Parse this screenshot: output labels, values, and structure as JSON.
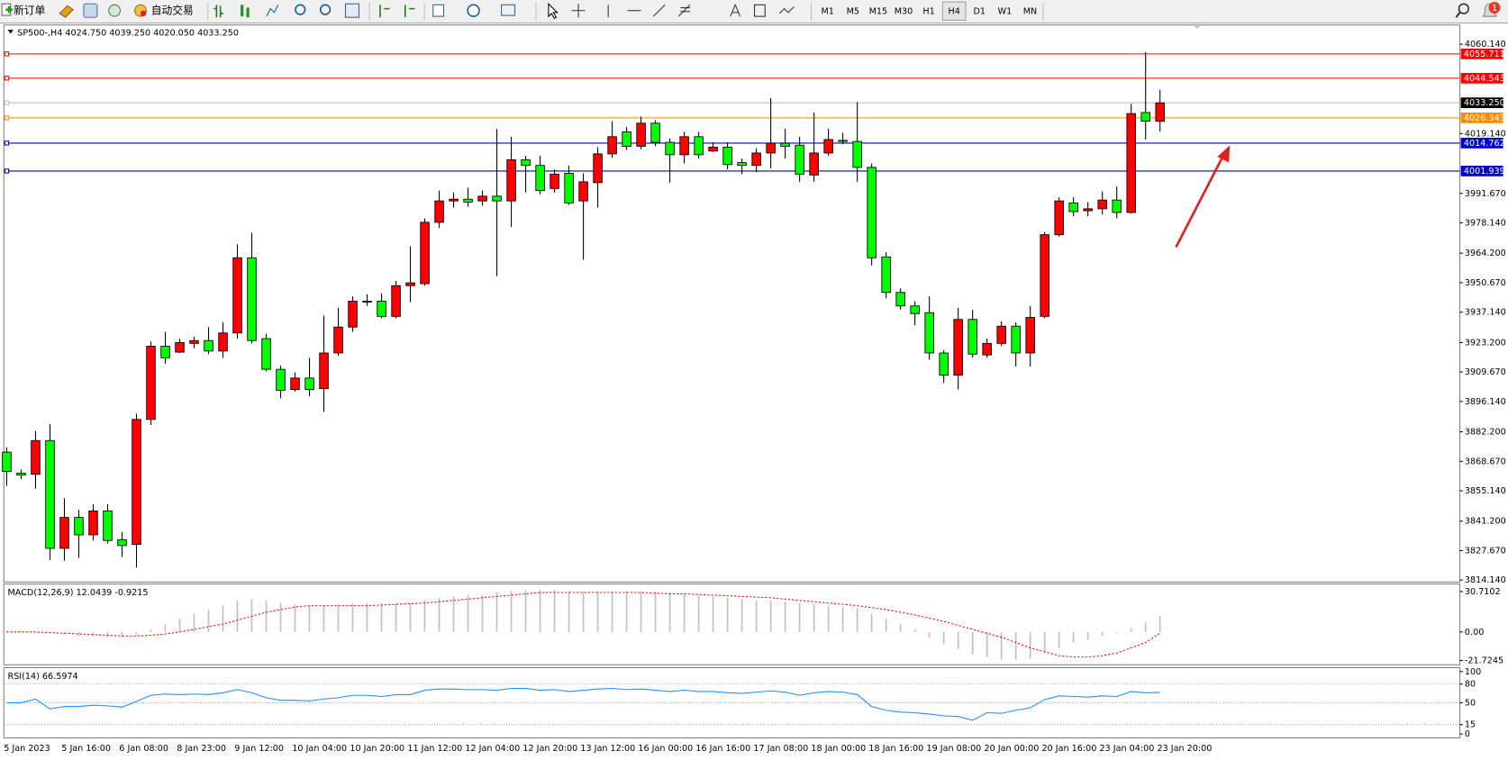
{
  "toolbar": {
    "new_order": "新订单",
    "auto_trading": "自动交易",
    "timeframes": [
      "M1",
      "M5",
      "M15",
      "M30",
      "H1",
      "H4",
      "D1",
      "W1",
      "MN"
    ],
    "active_timeframe": "H4",
    "notifications": 1
  },
  "chart_data": [
    {
      "type": "candlestick",
      "title": "SP500-,H4  4024.750 4039.250 4020.050 4033.250",
      "categories": [
        "5 Jan 2023",
        null,
        null,
        null,
        "5 Jan 16:00",
        null,
        null,
        null,
        "6 Jan 08:00",
        null,
        null,
        null,
        "8 Jan 23:00",
        null,
        null,
        null,
        "9 Jan 12:00",
        null,
        null,
        null,
        "10 Jan 04:00",
        null,
        null,
        null,
        "10 Jan 20:00",
        null,
        null,
        null,
        "11 Jan 12:00",
        null,
        null,
        null,
        "12 Jan 04:00",
        null,
        null,
        null,
        "12 Jan 20:00",
        null,
        null,
        null,
        "13 Jan 12:00",
        null,
        null,
        null,
        "16 Jan 00:00",
        null,
        null,
        null,
        "16 Jan 16:00",
        null,
        null,
        null,
        "17 Jan 08:00",
        null,
        null,
        null,
        "18 Jan 00:00",
        null,
        null,
        null,
        "18 Jan 16:00",
        null,
        null,
        null,
        "19 Jan 08:00",
        null,
        null,
        null,
        "20 Jan 00:00",
        null,
        null,
        null,
        "20 Jan 16:00",
        null,
        null,
        null,
        "23 Jan 04:00",
        null,
        null,
        null,
        "23 Jan 20:00"
      ],
      "candles": [
        [
          3872.9,
          3875.1,
          3857.4,
          3864.0
        ],
        [
          3863.2,
          3864.9,
          3860.5,
          3862.3
        ],
        [
          3862.7,
          3882.6,
          3856.1,
          3878.2
        ],
        [
          3878.2,
          3885.7,
          3823.4,
          3828.7
        ],
        [
          3828.7,
          3851.7,
          3823.0,
          3842.9
        ],
        [
          3842.9,
          3846.4,
          3824.3,
          3834.9
        ],
        [
          3834.9,
          3849.0,
          3832.3,
          3845.9
        ],
        [
          3845.9,
          3849.0,
          3830.9,
          3832.3
        ],
        [
          3832.7,
          3836.2,
          3824.7,
          3830.0
        ],
        [
          3830.5,
          3890.6,
          3819.9,
          3887.9
        ],
        [
          3887.9,
          3923.7,
          3885.3,
          3921.5
        ],
        [
          3921.5,
          3928.1,
          3913.5,
          3916.2
        ],
        [
          3918.8,
          3925.0,
          3918.4,
          3923.2
        ],
        [
          3922.8,
          3925.9,
          3920.6,
          3924.1
        ],
        [
          3924.1,
          3930.3,
          3917.9,
          3919.3
        ],
        [
          3919.3,
          3932.5,
          3916.2,
          3927.6
        ],
        [
          3927.6,
          3968.3,
          3925.0,
          3962.1
        ],
        [
          3962.1,
          3973.6,
          3922.8,
          3924.1
        ],
        [
          3925.0,
          3927.2,
          3910.0,
          3910.9
        ],
        [
          3910.9,
          3912.6,
          3897.6,
          3901.2
        ],
        [
          3901.6,
          3909.5,
          3900.7,
          3906.9
        ],
        [
          3906.9,
          3916.2,
          3898.5,
          3901.6
        ],
        [
          3902.0,
          3935.6,
          3891.4,
          3918.4
        ],
        [
          3918.4,
          3939.1,
          3917.1,
          3930.3
        ],
        [
          3930.3,
          3944.4,
          3928.1,
          3942.2
        ],
        [
          3942.2,
          3945.3,
          3940.0,
          3941.8
        ],
        [
          3942.2,
          3945.8,
          3934.3,
          3935.2
        ],
        [
          3935.2,
          3951.5,
          3934.3,
          3949.3
        ],
        [
          3949.3,
          3967.4,
          3941.8,
          3950.6
        ],
        [
          3950.2,
          3980.2,
          3949.3,
          3978.4
        ],
        [
          3978.4,
          3993.0,
          3975.8,
          3988.2
        ],
        [
          3988.2,
          3992.1,
          3985.1,
          3989.0
        ],
        [
          3989.0,
          3994.3,
          3985.5,
          3987.7
        ],
        [
          3988.2,
          3993.0,
          3986.0,
          3990.4
        ],
        [
          3990.4,
          4021.3,
          3953.7,
          3988.2
        ],
        [
          3988.2,
          4017.7,
          3976.2,
          4007.1
        ],
        [
          4007.1,
          4008.9,
          3992.1,
          4004.5
        ],
        [
          4004.5,
          4008.9,
          3991.2,
          3993.0
        ],
        [
          3993.9,
          4002.7,
          3992.1,
          4000.5
        ],
        [
          4000.9,
          4004.5,
          3986.4,
          3987.3
        ],
        [
          3988.2,
          4000.9,
          3961.2,
          3997.0
        ],
        [
          3996.6,
          4012.9,
          3985.1,
          4009.8
        ],
        [
          4009.8,
          4024.8,
          4008.0,
          4017.7
        ],
        [
          4019.9,
          4022.2,
          4011.6,
          4013.3
        ],
        [
          4013.3,
          4027.0,
          4012.0,
          4023.9
        ],
        [
          4023.9,
          4025.3,
          4013.3,
          4015.1
        ],
        [
          4015.1,
          4016.9,
          3996.6,
          4009.4
        ],
        [
          4009.4,
          4019.9,
          4005.4,
          4017.7
        ],
        [
          4017.7,
          4019.9,
          4007.6,
          4009.4
        ],
        [
          4011.1,
          4015.1,
          4010.7,
          4012.9
        ],
        [
          4012.9,
          4015.1,
          4002.7,
          4004.9
        ],
        [
          4005.8,
          4007.6,
          4000.5,
          4004.5
        ],
        [
          4004.5,
          4012.4,
          4001.4,
          4010.2
        ],
        [
          4010.2,
          4035.4,
          4003.2,
          4014.7
        ],
        [
          4014.7,
          4021.3,
          4007.6,
          4013.3
        ],
        [
          4013.8,
          4017.7,
          3997.0,
          4000.5
        ],
        [
          4000.1,
          4028.8,
          3997.0,
          4010.2
        ],
        [
          4010.2,
          4021.3,
          4008.9,
          4016.4
        ],
        [
          4016.0,
          4019.5,
          4014.2,
          4015.5
        ],
        [
          4015.5,
          4033.6,
          3997.0,
          4003.6
        ],
        [
          4003.6,
          4005.4,
          3958.6,
          3962.1
        ],
        [
          3962.5,
          3964.7,
          3943.5,
          3946.2
        ],
        [
          3946.2,
          3948.0,
          3938.3,
          3940.0
        ],
        [
          3940.0,
          3942.2,
          3931.2,
          3936.5
        ],
        [
          3936.9,
          3944.4,
          3915.3,
          3918.4
        ],
        [
          3918.4,
          3919.7,
          3904.7,
          3908.2
        ],
        [
          3908.2,
          3939.1,
          3901.6,
          3933.8
        ],
        [
          3933.8,
          3938.3,
          3916.2,
          3917.9
        ],
        [
          3917.5,
          3925.0,
          3916.2,
          3922.8
        ],
        [
          3922.8,
          3932.9,
          3921.5,
          3930.7
        ],
        [
          3930.7,
          3932.5,
          3912.2,
          3918.4
        ],
        [
          3918.4,
          3940.0,
          3912.2,
          3934.7
        ],
        [
          3935.2,
          3974.0,
          3934.3,
          3972.7
        ],
        [
          3972.7,
          3989.9,
          3971.8,
          3988.2
        ],
        [
          3987.3,
          3989.9,
          3981.1,
          3983.3
        ],
        [
          3983.7,
          3987.7,
          3981.1,
          3984.6
        ],
        [
          3984.6,
          3992.6,
          3982.0,
          3988.6
        ],
        [
          3988.6,
          3994.8,
          3980.2,
          3982.9
        ],
        [
          3982.9,
          4032.8,
          3982.4,
          4028.3
        ],
        [
          4028.8,
          4056.6,
          4016.4,
          4024.8
        ],
        [
          4024.75,
          4039.25,
          4020.05,
          4033.25
        ]
      ],
      "up_color": "#ff0000",
      "down_color": "#00ff00",
      "ylim": [
        3813.25,
        4068.97
      ],
      "yticks": [
        {
          "value": 4060.14,
          "label": "4060.140"
        },
        {
          "value": 4019.14,
          "label": "4019.140"
        },
        {
          "value": 3991.67,
          "label": "3991.670"
        },
        {
          "value": 3978.14,
          "label": "3978.140"
        },
        {
          "value": 3964.2,
          "label": "3964.200"
        },
        {
          "value": 3950.67,
          "label": "3950.670"
        },
        {
          "value": 3937.14,
          "label": "3937.140"
        },
        {
          "value": 3923.2,
          "label": "3923.200"
        },
        {
          "value": 3909.67,
          "label": "3909.670"
        },
        {
          "value": 3896.14,
          "label": "3896.140"
        },
        {
          "value": 3882.2,
          "label": "3882.200"
        },
        {
          "value": 3868.67,
          "label": "3868.670"
        },
        {
          "value": 3855.14,
          "label": "3855.140"
        },
        {
          "value": 3841.2,
          "label": "3841.200"
        },
        {
          "value": 3827.67,
          "label": "3827.670"
        },
        {
          "value": 3814.14,
          "label": "3814.140"
        }
      ],
      "hlines": [
        {
          "value": 4055.711,
          "color": "#ff0000"
        },
        {
          "value": 4044.543,
          "color": "#ff0000"
        },
        {
          "value": 4026.343,
          "color": "#ff8c00"
        },
        {
          "value": 4014.762,
          "color": "#0000cd"
        },
        {
          "value": 4001.939,
          "color": "#0000cd"
        }
      ],
      "last_price": {
        "value": 4033.25,
        "label": "4033.250"
      }
    },
    {
      "type": "macd",
      "title": "MACD(12,26,9) 12.0439 -0.9215",
      "histogram": [
        1,
        1,
        0,
        -1,
        -2,
        -3,
        -3,
        -4,
        -4,
        -2,
        2,
        6,
        10,
        14,
        17,
        20,
        24,
        25,
        24,
        22,
        21,
        20,
        20,
        21,
        22,
        22,
        22,
        22,
        22,
        24,
        26,
        27,
        28,
        28,
        30,
        31,
        32,
        32,
        32,
        31,
        31,
        31,
        31,
        31,
        31,
        31,
        30,
        29,
        28,
        27,
        26,
        25,
        24,
        24,
        23,
        22,
        21,
        20,
        19,
        18,
        14,
        10,
        6,
        2,
        -4,
        -9,
        -13,
        -17,
        -19,
        -21,
        -21,
        -20,
        -16,
        -12,
        -8,
        -6,
        -3,
        -1,
        3,
        7,
        12.0439
      ],
      "signal": [
        0,
        0,
        0,
        -0.5,
        -1,
        -1.5,
        -2,
        -2.5,
        -3,
        -3,
        -2.5,
        -1.5,
        0,
        2,
        4,
        6,
        9,
        12,
        15,
        17,
        19,
        20,
        20,
        20,
        20,
        20,
        20.5,
        21,
        21.5,
        22,
        23,
        24,
        25,
        26,
        27,
        28,
        29,
        30,
        30,
        30,
        30,
        30,
        30,
        30,
        30,
        29.5,
        29,
        29,
        28.5,
        28,
        27.5,
        27,
        26.5,
        26,
        25,
        24,
        23,
        22,
        21,
        20,
        18.5,
        17,
        15,
        13,
        10.5,
        8,
        5,
        2,
        -1,
        -4,
        -8,
        -12,
        -15,
        -18,
        -19,
        -19,
        -18,
        -16,
        -12,
        -8,
        -0.9215
      ],
      "histogram_color": "#c0c0c0",
      "signal_color": "#ff0000",
      "ylim": [
        -24.9,
        36.5
      ],
      "yticks": [
        30.7102,
        {
          "value": 0,
          "label": "0.00"
        },
        -21.7245
      ]
    },
    {
      "type": "line",
      "title": "RSI(14) 66.5974",
      "values": [
        50,
        50,
        56,
        40,
        44,
        44,
        46,
        45,
        43,
        52,
        62,
        64,
        63,
        64,
        63,
        66,
        71,
        66,
        58,
        54,
        54,
        53,
        56,
        58,
        62,
        62,
        60,
        63,
        63,
        70,
        72,
        72,
        71,
        71,
        70,
        73,
        73,
        70,
        71,
        68,
        70,
        72,
        73,
        71,
        72,
        70,
        68,
        70,
        68,
        68,
        66,
        65,
        67,
        69,
        67,
        62,
        66,
        68,
        67,
        63,
        44,
        38,
        35,
        34,
        32,
        29,
        28,
        22,
        34,
        33,
        38,
        42,
        55,
        61,
        60,
        59,
        61,
        60,
        68,
        66,
        66.5974
      ],
      "color": "#1e90ff",
      "ylim": [
        -6.25,
        106.25
      ],
      "yticks": [
        100,
        80,
        50,
        15,
        0
      ],
      "levels": [
        80,
        50,
        15
      ]
    }
  ]
}
